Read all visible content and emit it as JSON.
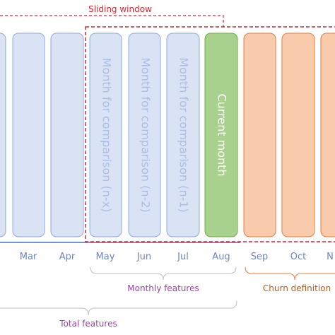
{
  "sliding_window": "Sliding window",
  "months": [
    "Mar",
    "Apr",
    "May",
    "Jun",
    "Jul",
    "Aug",
    "Sep",
    "Oct",
    "N"
  ],
  "columns": [
    "Month for comparison (n-x)",
    "Month for comparison (n-2)",
    "Month for comparison (n-1)",
    "Current month"
  ],
  "annotations": {
    "monthly_features": "Monthly features",
    "churn_definition": "Churn definition",
    "total_features": "Total features"
  }
}
